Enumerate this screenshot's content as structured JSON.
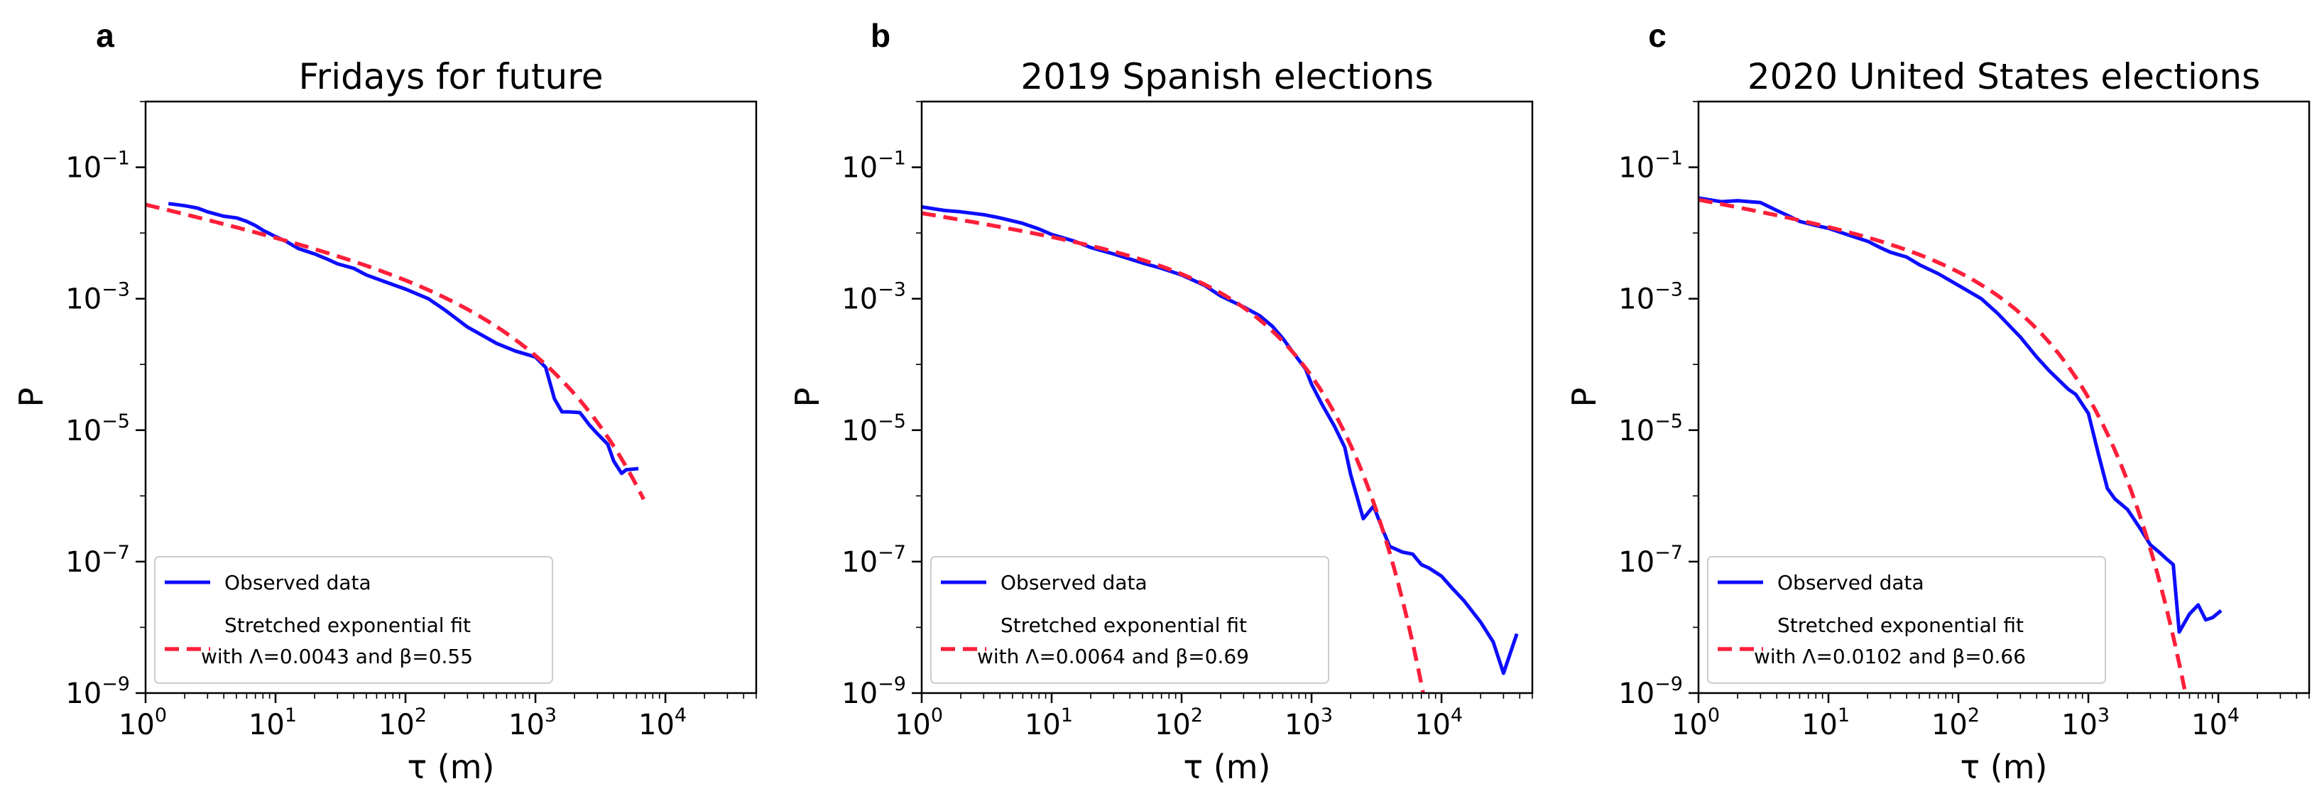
{
  "chart_data": [
    {
      "type": "line",
      "panel_letter": "a",
      "title": "Fridays for future",
      "xlabel": "τ (m)",
      "ylabel": "P",
      "xscale": "log",
      "yscale": "log",
      "xlim": [
        1,
        50000
      ],
      "ylim": [
        1e-09,
        1
      ],
      "x_ticks": [
        {
          "base": "10",
          "exp": "0"
        },
        {
          "base": "10",
          "exp": "1"
        },
        {
          "base": "10",
          "exp": "2"
        },
        {
          "base": "10",
          "exp": "3"
        },
        {
          "base": "10",
          "exp": "4"
        }
      ],
      "y_ticks": [
        {
          "base": "10",
          "exp": "−1"
        },
        {
          "base": "10",
          "exp": "−3"
        },
        {
          "base": "10",
          "exp": "−5"
        },
        {
          "base": "10",
          "exp": "−7"
        },
        {
          "base": "10",
          "exp": "−9"
        }
      ],
      "legend": {
        "position": "lower-left",
        "observed_label": "Observed data",
        "fit_label_line1": "Stretched exponential fit",
        "fit_label_line2": "with Λ=0.0043 and β=0.55"
      },
      "series": [
        {
          "name": "Observed data",
          "color": "#0d0dff",
          "style": "solid",
          "x": [
            1.5,
            2,
            2.5,
            3,
            4,
            5,
            6,
            7,
            8,
            10,
            12,
            15,
            20,
            25,
            30,
            40,
            50,
            70,
            100,
            150,
            200,
            300,
            400,
            500,
            700,
            1000,
            1200,
            1400,
            1600,
            1800,
            2200,
            2600,
            3000,
            3600,
            4000,
            4600,
            5000,
            6200
          ],
          "y": [
            0.028,
            0.026,
            0.024,
            0.021,
            0.018,
            0.017,
            0.015,
            0.013,
            0.011,
            0.0088,
            0.0075,
            0.0058,
            0.0048,
            0.004,
            0.0034,
            0.0029,
            0.0023,
            0.0018,
            0.0014,
            0.001,
            0.00068,
            0.00037,
            0.00027,
            0.00021,
            0.00016,
            0.00013,
            9e-05,
            3e-05,
            1.9e-05,
            1.9e-05,
            1.85e-05,
            1.2e-05,
            8.8e-06,
            6.1e-06,
            3.4e-06,
            2.2e-06,
            2.5e-06,
            2.6e-06
          ]
        },
        {
          "name": "Stretched exponential fit",
          "color": "#ff1f3a",
          "style": "dashed",
          "lambda": 0.0043,
          "beta": 0.55,
          "x_range": [
            1,
            6800
          ],
          "anchor": [
            1,
            0.027
          ]
        }
      ]
    },
    {
      "type": "line",
      "panel_letter": "b",
      "title": "2019 Spanish elections",
      "xlabel": "τ (m)",
      "ylabel": "P",
      "xscale": "log",
      "yscale": "log",
      "xlim": [
        1,
        50000
      ],
      "ylim": [
        1e-09,
        1
      ],
      "x_ticks": [
        {
          "base": "10",
          "exp": "0"
        },
        {
          "base": "10",
          "exp": "1"
        },
        {
          "base": "10",
          "exp": "2"
        },
        {
          "base": "10",
          "exp": "3"
        },
        {
          "base": "10",
          "exp": "4"
        }
      ],
      "y_ticks": [
        {
          "base": "10",
          "exp": "−1"
        },
        {
          "base": "10",
          "exp": "−3"
        },
        {
          "base": "10",
          "exp": "−5"
        },
        {
          "base": "10",
          "exp": "−7"
        },
        {
          "base": "10",
          "exp": "−9"
        }
      ],
      "legend": {
        "position": "lower-left",
        "observed_label": "Observed data",
        "fit_label_line1": "Stretched exponential fit",
        "fit_label_line2": "with Λ=0.0064 and β=0.69"
      },
      "series": [
        {
          "name": "Observed data",
          "color": "#0d0dff",
          "style": "solid",
          "x": [
            1,
            1.5,
            2,
            3,
            4,
            6,
            8,
            10,
            15,
            20,
            30,
            50,
            70,
            100,
            150,
            200,
            300,
            400,
            500,
            600,
            700,
            900,
            1000,
            1200,
            1500,
            1800,
            2000,
            2500,
            3000,
            3500,
            4000,
            5000,
            6000,
            7000,
            8000,
            10000,
            12000,
            15000,
            20000,
            25000,
            30000,
            38000
          ],
          "y": [
            0.025,
            0.022,
            0.021,
            0.019,
            0.017,
            0.014,
            0.0115,
            0.0095,
            0.0075,
            0.006,
            0.0048,
            0.0035,
            0.0029,
            0.0023,
            0.0016,
            0.0011,
            0.00075,
            0.00055,
            0.00038,
            0.00025,
            0.000165,
            8.5e-05,
            5e-05,
            2.5e-05,
            1.15e-05,
            5.5e-06,
            2.1e-06,
            4.5e-07,
            7e-07,
            3.2e-07,
            1.7e-07,
            1.4e-07,
            1.3e-07,
            9e-08,
            8e-08,
            6e-08,
            4e-08,
            2.5e-08,
            1.2e-08,
            6e-09,
            2e-09,
            8e-09
          ]
        },
        {
          "name": "Stretched exponential fit",
          "color": "#ff1f3a",
          "style": "dashed",
          "lambda": 0.0064,
          "beta": 0.69,
          "x_range": [
            1,
            7500
          ],
          "anchor": [
            1,
            0.02
          ]
        }
      ]
    },
    {
      "type": "line",
      "panel_letter": "c",
      "title": "2020 United States elections",
      "xlabel": "τ (m)",
      "ylabel": "P",
      "xscale": "log",
      "yscale": "log",
      "xlim": [
        1,
        50000
      ],
      "ylim": [
        1e-09,
        1
      ],
      "x_ticks": [
        {
          "base": "10",
          "exp": "0"
        },
        {
          "base": "10",
          "exp": "1"
        },
        {
          "base": "10",
          "exp": "2"
        },
        {
          "base": "10",
          "exp": "3"
        },
        {
          "base": "10",
          "exp": "4"
        }
      ],
      "y_ticks": [
        {
          "base": "10",
          "exp": "−1"
        },
        {
          "base": "10",
          "exp": "−3"
        },
        {
          "base": "10",
          "exp": "−5"
        },
        {
          "base": "10",
          "exp": "−7"
        },
        {
          "base": "10",
          "exp": "−9"
        }
      ],
      "legend": {
        "position": "lower-left",
        "observed_label": "Observed data",
        "fit_label_line1": "Stretched exponential fit",
        "fit_label_line2": "with Λ=0.0102 and β=0.66"
      },
      "series": [
        {
          "name": "Observed data",
          "color": "#0d0dff",
          "style": "solid",
          "x": [
            1,
            1.5,
            2,
            3,
            4,
            5,
            6,
            8,
            10,
            15,
            20,
            25,
            30,
            40,
            50,
            70,
            100,
            150,
            200,
            300,
            400,
            500,
            700,
            800,
            1000,
            1200,
            1400,
            1600,
            2000,
            2500,
            3000,
            3500,
            4000,
            4500,
            5000,
            6000,
            7000,
            8000,
            9000,
            10500
          ],
          "y": [
            0.034,
            0.03,
            0.031,
            0.029,
            0.022,
            0.018,
            0.015,
            0.013,
            0.0118,
            0.009,
            0.0075,
            0.006,
            0.0051,
            0.0043,
            0.0033,
            0.0024,
            0.0016,
            0.001,
            0.0006,
            0.00026,
            0.00013,
            8e-05,
            4.2e-05,
            3.5e-05,
            1.8e-05,
            4.2e-06,
            1.3e-06,
            9e-07,
            6.2e-07,
            3.2e-07,
            1.8e-07,
            1.4e-07,
            1.1e-07,
            9e-08,
            8.5e-09,
            1.6e-08,
            2.2e-08,
            1.3e-08,
            1.4e-08,
            1.8e-08
          ]
        },
        {
          "name": "Stretched exponential fit",
          "color": "#ff1f3a",
          "style": "dashed",
          "lambda": 0.0102,
          "beta": 0.66,
          "x_range": [
            1,
            5500
          ],
          "anchor": [
            1,
            0.032
          ]
        }
      ]
    }
  ]
}
